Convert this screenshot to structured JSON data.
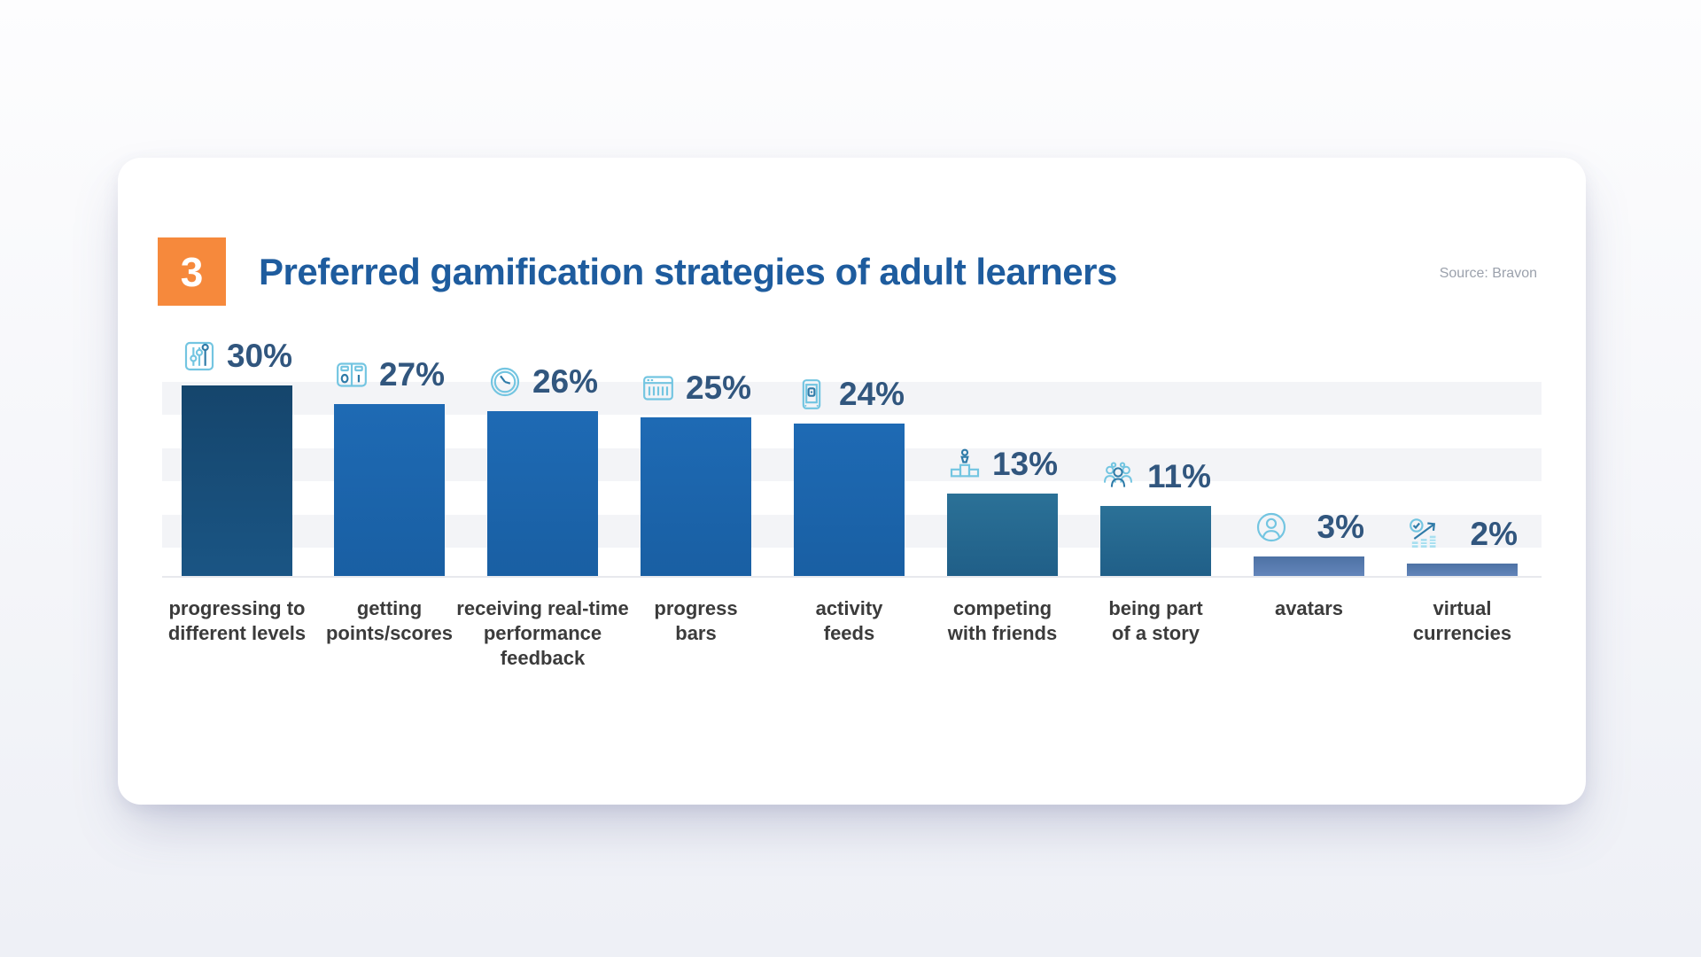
{
  "header": {
    "badge_number": "3",
    "badge_color": "#f6893c",
    "title": "Preferred gamification strategies of adult learners",
    "title_color": "#1e5c9e",
    "source": "Source: Bravon"
  },
  "chart_data": {
    "type": "bar",
    "title": "Preferred gamification strategies of adult learners",
    "source": "Source: Bravon",
    "unit": "percent",
    "ylim": [
      0,
      30
    ],
    "grid": "horizontal-stripes",
    "legend": "none",
    "categories": [
      "progressing to different levels",
      "getting points/scores",
      "receiving real-time performance feedback",
      "progress bars",
      "activity feeds",
      "competing with friends",
      "being part of a story",
      "avatars",
      "virtual currencies"
    ],
    "values": [
      30,
      27,
      26,
      25,
      24,
      13,
      11,
      3,
      2
    ],
    "bars": [
      {
        "label_lines": [
          "progressing to",
          "different levels"
        ],
        "value": 30,
        "display": "30%",
        "icon": "sliders-icon",
        "color": "navy"
      },
      {
        "label_lines": [
          "getting",
          "points/scores"
        ],
        "value": 27,
        "display": "27%",
        "icon": "scoreboard-icon",
        "color": "blue"
      },
      {
        "label_lines": [
          "receiving real-time",
          "performance",
          "feedback"
        ],
        "value": 26,
        "display": "26%",
        "icon": "clock-icon",
        "color": "blue"
      },
      {
        "label_lines": [
          "progress",
          "bars"
        ],
        "value": 25,
        "display": "25%",
        "icon": "progress-bars-icon",
        "color": "blue"
      },
      {
        "label_lines": [
          "activity",
          "feeds"
        ],
        "value": 24,
        "display": "24%",
        "icon": "smartphone-icon",
        "color": "blue"
      },
      {
        "label_lines": [
          "competing",
          "with friends"
        ],
        "value": 13,
        "display": "13%",
        "icon": "podium-icon",
        "color": "steel"
      },
      {
        "label_lines": [
          "being part",
          "of a story"
        ],
        "value": 11,
        "display": "11%",
        "icon": "team-icon",
        "color": "steel"
      },
      {
        "label_lines": [
          "avatars"
        ],
        "value": 3,
        "display": "3%",
        "icon": "avatar-icon",
        "color": "slate"
      },
      {
        "label_lines": [
          "virtual",
          "currencies"
        ],
        "value": 2,
        "display": "2%",
        "icon": "growth-chart-icon",
        "color": "slate"
      }
    ],
    "colors": {
      "navy": {
        "top": "#15456c",
        "bottom": "#1a5584"
      },
      "blue": {
        "top": "#1e6ab4",
        "bottom": "#195fa3"
      },
      "steel": {
        "top": "#2b7197",
        "bottom": "#205f88"
      },
      "slate": {
        "top": "#4d72a4",
        "bottom": "#6385ba"
      }
    },
    "value_label_color": "#31567e",
    "category_label_color": "#3b3b3b",
    "icon_color_light": "#73c5e1",
    "icon_color_accent": "#2f7ba8"
  }
}
